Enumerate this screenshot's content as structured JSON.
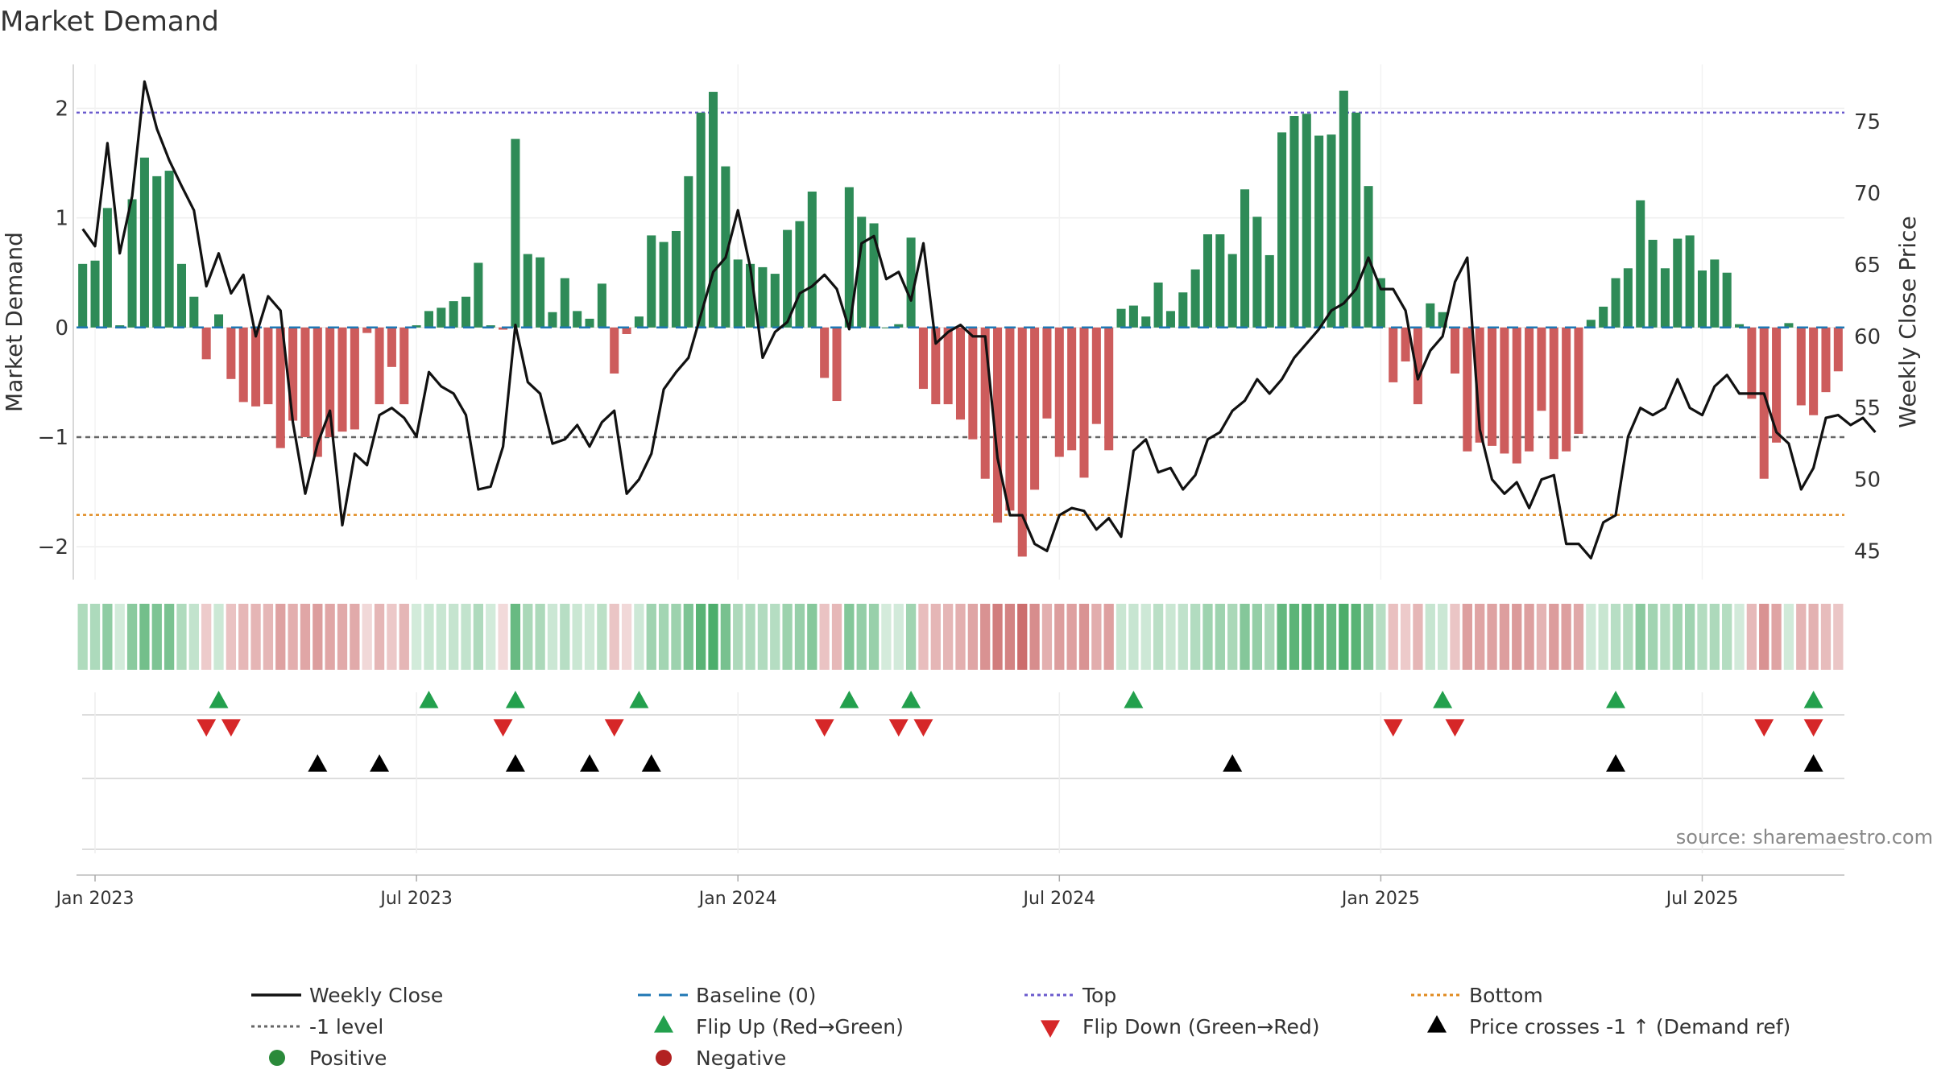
{
  "chart_data": {
    "type": "bar",
    "title": "Market Demand",
    "ylabel_left": "Market Demand",
    "ylabel_right": "Weekly Close Price",
    "source": "source: sharemaestro.com",
    "x_ticks": [
      "Jan 2023",
      "Jul 2023",
      "Jan 2024",
      "Jul 2024",
      "Jan 2025",
      "Jul 2025"
    ],
    "x_tick_week_index": [
      1,
      27,
      53,
      79,
      105,
      131
    ],
    "ylim_left": [
      -2.3,
      2.4
    ],
    "yticks_left": [
      -2,
      -1,
      0,
      1,
      2
    ],
    "ylim_right": [
      43,
      79
    ],
    "yticks_right": [
      45,
      50,
      55,
      60,
      65,
      70,
      75
    ],
    "levels": {
      "top": 1.96,
      "bottom": -1.71,
      "minus_one": -1.0,
      "baseline": 0
    },
    "colors": {
      "positive": "#2e8b57",
      "negative": "#cd5c5c",
      "close": "#111111",
      "baseline": "#1f77b4",
      "top": "#6a5acd",
      "bottom": "#e08a1e",
      "minus_one": "#666666",
      "flip_up": "#23a04d",
      "flip_down": "#d62728",
      "cross": "#000000"
    },
    "demand": [
      0.58,
      0.61,
      1.09,
      0.02,
      1.17,
      1.55,
      1.38,
      1.43,
      0.58,
      0.28,
      -0.29,
      0.12,
      -0.47,
      -0.68,
      -0.72,
      -0.7,
      -1.1,
      -0.85,
      -1.0,
      -1.18,
      -1.0,
      -0.95,
      -0.93,
      -0.05,
      -0.7,
      -0.36,
      -0.7,
      0.02,
      0.15,
      0.18,
      0.24,
      0.28,
      0.59,
      0.02,
      -0.02,
      1.72,
      0.67,
      0.64,
      0.14,
      0.45,
      0.15,
      0.08,
      0.4,
      -0.42,
      -0.06,
      0.1,
      0.84,
      0.78,
      0.88,
      1.38,
      1.96,
      2.15,
      1.47,
      0.62,
      0.58,
      0.55,
      0.49,
      0.89,
      0.97,
      1.24,
      -0.46,
      -0.67,
      1.28,
      1.01,
      0.95,
      0.0,
      0.03,
      0.82,
      -0.56,
      -0.7,
      -0.7,
      -0.84,
      -1.02,
      -1.38,
      -1.78,
      -1.67,
      -2.09,
      -1.48,
      -0.83,
      -1.18,
      -1.12,
      -1.37,
      -0.88,
      -1.12,
      0.17,
      0.2,
      0.1,
      0.41,
      0.15,
      0.32,
      0.53,
      0.85,
      0.85,
      0.67,
      1.26,
      1.01,
      0.66,
      1.78,
      1.93,
      1.95,
      1.75,
      1.76,
      2.16,
      1.96,
      1.29,
      0.45,
      -0.5,
      -0.31,
      -0.7,
      0.22,
      0.14,
      -0.42,
      -1.13,
      -1.05,
      -1.08,
      -1.15,
      -1.24,
      -1.13,
      -0.76,
      -1.2,
      -1.13,
      -0.97,
      0.07,
      0.19,
      0.45,
      0.54,
      1.16,
      0.8,
      0.54,
      0.81,
      0.84,
      0.52,
      0.62,
      0.5,
      0.03,
      -0.65,
      -1.38,
      -1.05,
      0.04,
      -0.71,
      -0.8,
      -0.59,
      -0.4
    ],
    "close": [
      67.5,
      66.3,
      73.5,
      65.8,
      69.8,
      77.8,
      74.5,
      72.3,
      70.5,
      68.8,
      63.5,
      65.8,
      63.0,
      64.3,
      60.0,
      62.8,
      61.8,
      54.0,
      49.0,
      52.5,
      54.8,
      46.8,
      51.8,
      51.0,
      54.5,
      55.0,
      54.3,
      53.0,
      57.5,
      56.5,
      56.0,
      54.5,
      49.3,
      49.5,
      52.3,
      60.8,
      56.8,
      56.0,
      52.5,
      52.8,
      53.8,
      52.3,
      54.0,
      54.8,
      49.0,
      50.0,
      51.8,
      56.3,
      57.5,
      58.5,
      61.5,
      64.5,
      65.5,
      68.8,
      64.8,
      58.5,
      60.3,
      61.0,
      63.0,
      63.5,
      64.3,
      63.3,
      60.5,
      66.5,
      67.0,
      64.0,
      64.5,
      62.5,
      66.5,
      59.5,
      60.3,
      60.8,
      60.0,
      60.0,
      51.5,
      47.5,
      47.5,
      45.5,
      45.0,
      47.5,
      48.0,
      47.8,
      46.5,
      47.3,
      46.0,
      52.0,
      52.8,
      50.5,
      50.8,
      49.3,
      50.3,
      52.8,
      53.3,
      54.8,
      55.5,
      57.0,
      56.0,
      57.0,
      58.5,
      59.5,
      60.5,
      61.8,
      62.3,
      63.3,
      65.5,
      63.3,
      63.3,
      61.8,
      57.0,
      59.0,
      60.0,
      63.8,
      65.5,
      53.5,
      50.0,
      49.0,
      49.8,
      48.0,
      50.0,
      50.3,
      45.5,
      45.5,
      44.5,
      47.0,
      47.5,
      53.0,
      55.0,
      54.5,
      55.0,
      57.0,
      55.0,
      54.5,
      56.5,
      57.3,
      56.0,
      56.0,
      56.0,
      53.3,
      52.5,
      49.3,
      50.8,
      54.3,
      54.5,
      53.8,
      54.3,
      53.3
    ],
    "flip_up_weeks": [
      11,
      28,
      35,
      45,
      62,
      67,
      85,
      110,
      124,
      140
    ],
    "flip_down_weeks": [
      10,
      12,
      34,
      43,
      60,
      66,
      68,
      106,
      111,
      136,
      140
    ],
    "cross_weeks": [
      19,
      24,
      35,
      41,
      46,
      93,
      124,
      140
    ],
    "legend": [
      {
        "label": "Weekly Close",
        "kind": "line",
        "color": "#111111"
      },
      {
        "label": "Baseline (0)",
        "kind": "dash",
        "color": "#1f77b4"
      },
      {
        "label": "Top",
        "kind": "dot",
        "color": "#6a5acd"
      },
      {
        "label": "Bottom",
        "kind": "dot",
        "color": "#e08a1e"
      },
      {
        "label": "-1 level",
        "kind": "dot",
        "color": "#666666"
      },
      {
        "label": "Flip Up (Red→Green)",
        "kind": "tri-up",
        "color": "#23a04d"
      },
      {
        "label": "Flip Down (Green→Red)",
        "kind": "tri-down",
        "color": "#d62728"
      },
      {
        "label": "Price crosses -1 ↑ (Demand ref)",
        "kind": "tri-up",
        "color": "#000000"
      },
      {
        "label": "Positive",
        "kind": "circle",
        "color": "#2a8a3a"
      },
      {
        "label": "Negative",
        "kind": "circle",
        "color": "#b22222"
      }
    ]
  }
}
